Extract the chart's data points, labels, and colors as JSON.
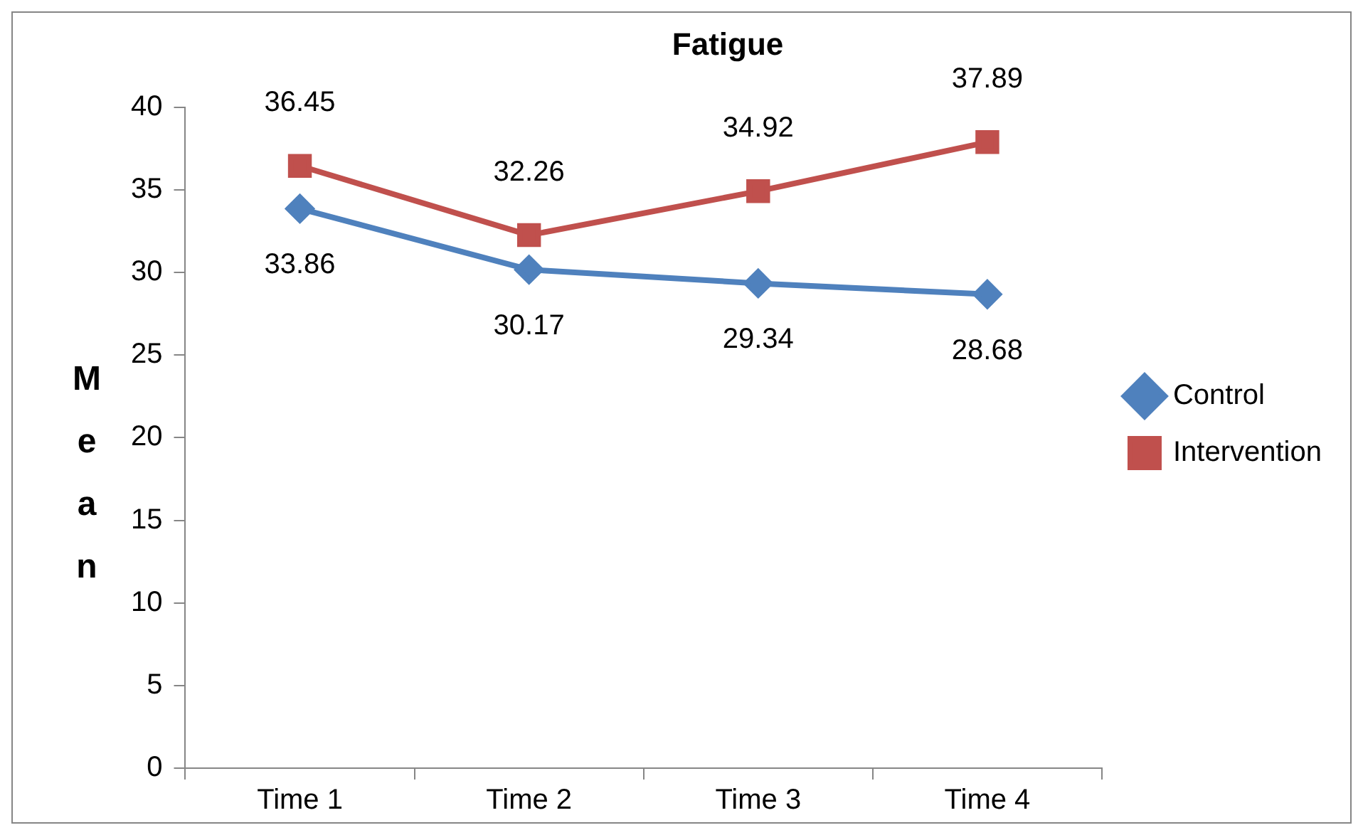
{
  "chart_data": {
    "type": "line",
    "title": "Fatigue",
    "ylabel": "Mean",
    "categories": [
      "Time 1",
      "Time 2",
      "Time 3",
      "Time 4"
    ],
    "series": [
      {
        "name": "Control",
        "color": "#4f81bd",
        "marker": "diamond",
        "values": [
          33.86,
          30.17,
          29.34,
          28.68
        ]
      },
      {
        "name": "Intervention",
        "color": "#c0504d",
        "marker": "square",
        "values": [
          36.45,
          32.26,
          34.92,
          37.89
        ]
      }
    ],
    "ylim": [
      0,
      40
    ],
    "yticks": [
      0,
      5,
      10,
      15,
      20,
      25,
      30,
      35,
      40
    ],
    "grid": false,
    "legend": "right",
    "data_labels": true,
    "line_style": "solid"
  }
}
